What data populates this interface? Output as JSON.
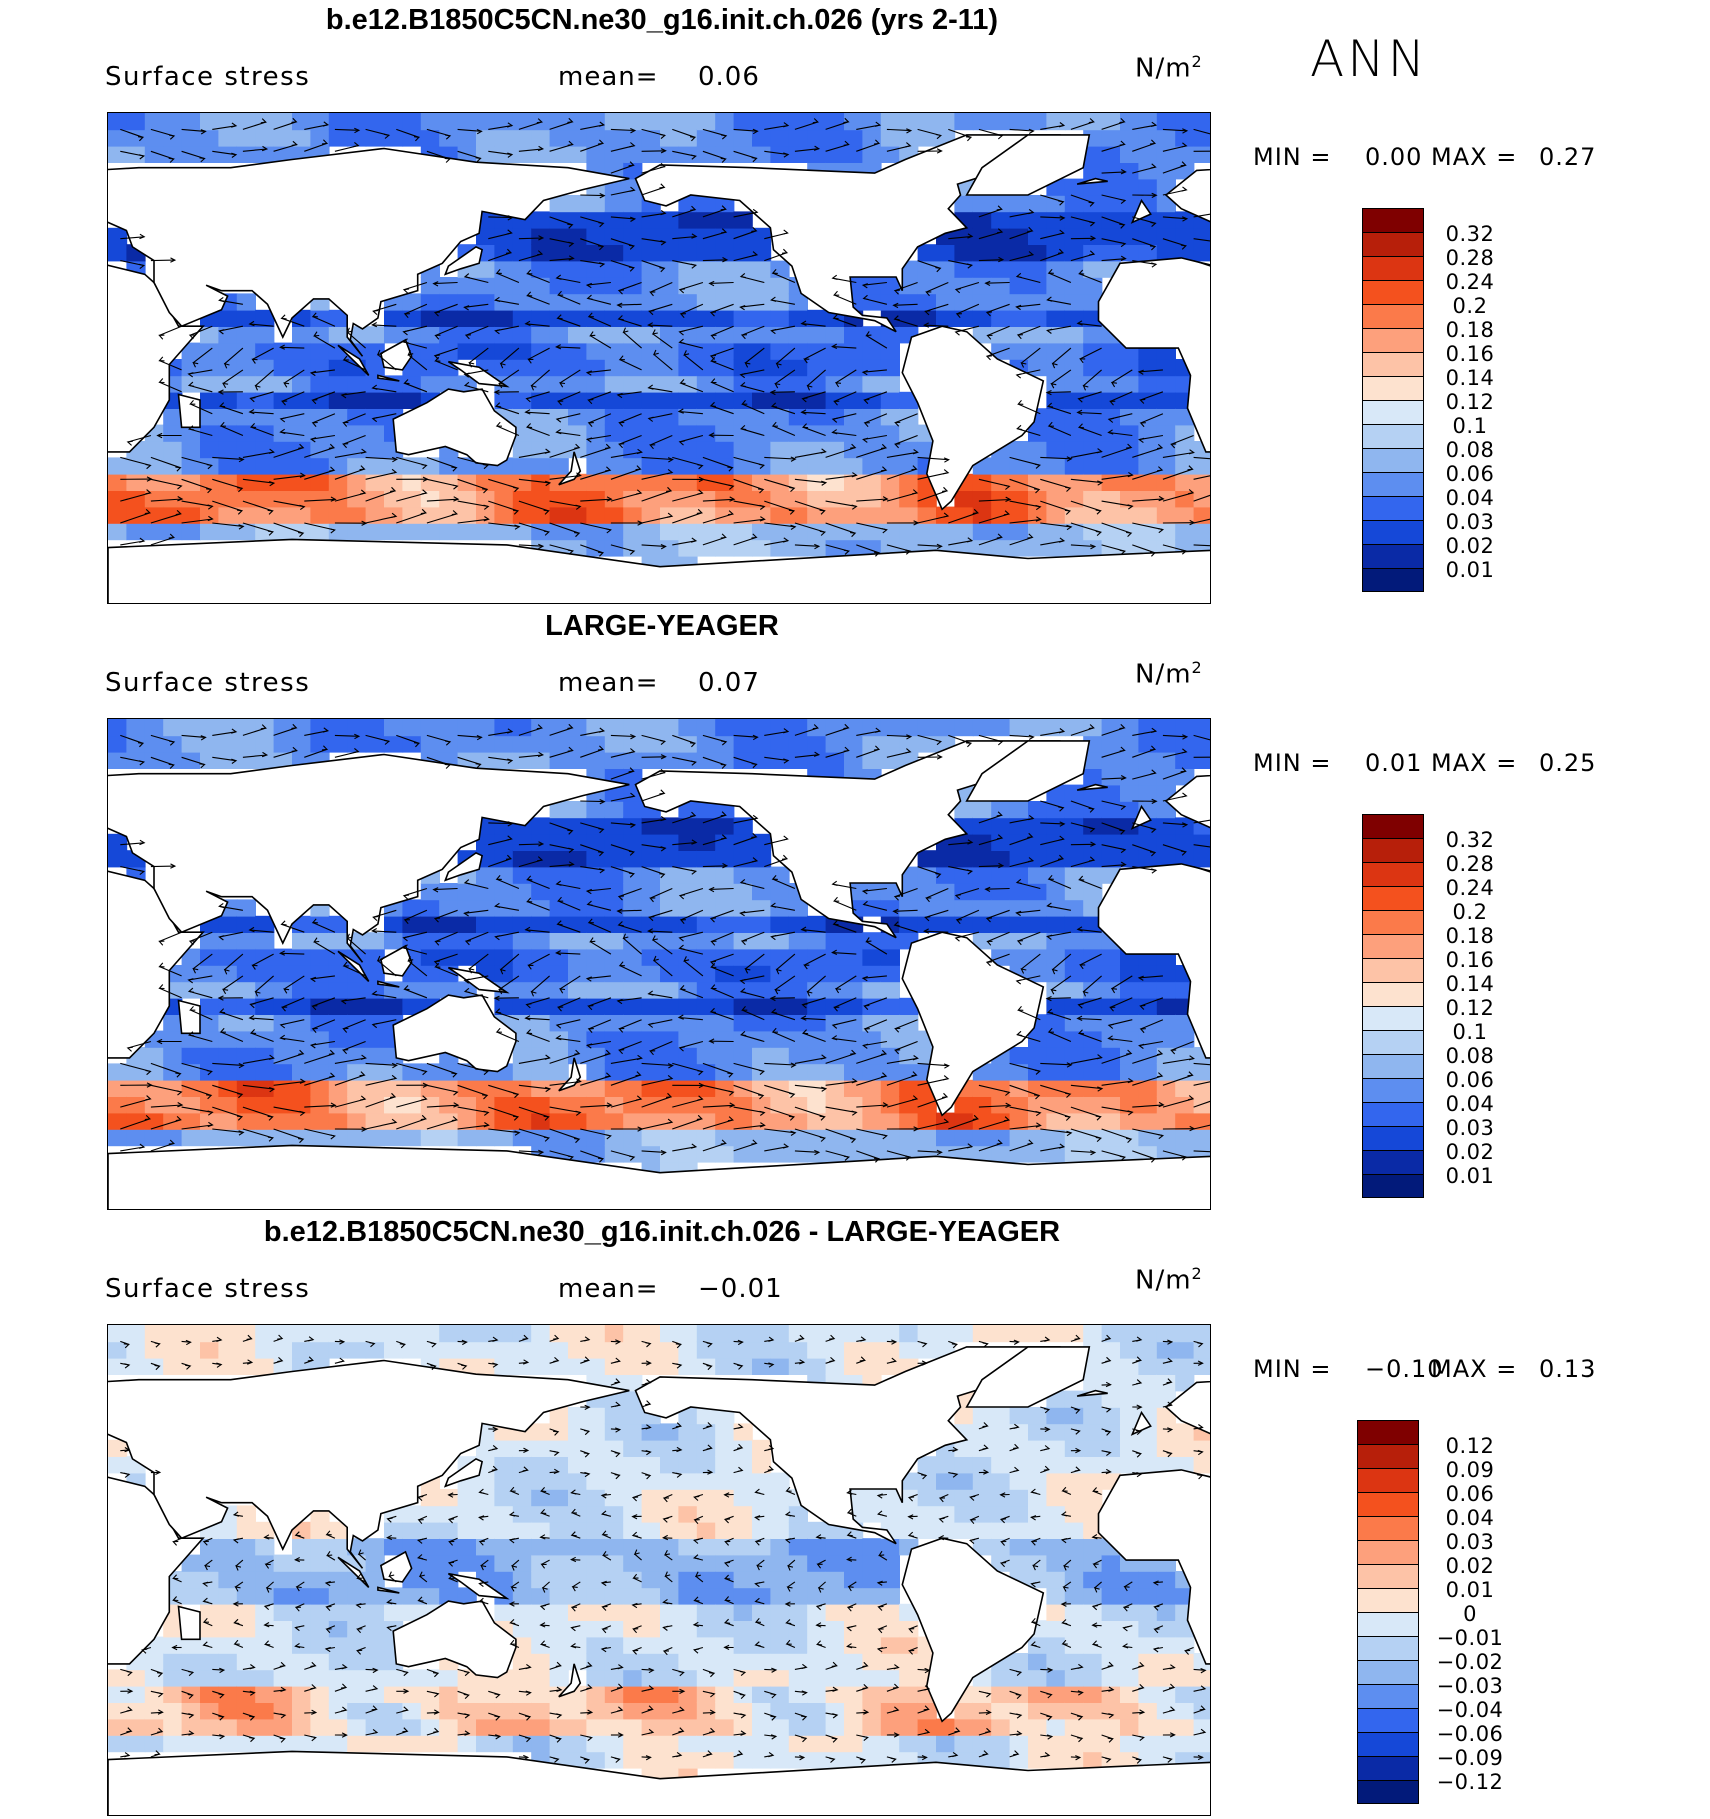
{
  "season": "ANN",
  "panels": [
    {
      "title": "b.e12.B1850C5CN.ne30_g16.init.ch.026 (yrs 2-11)",
      "variable": "Surface stress",
      "mean_label": "mean=",
      "mean_value": "0.06",
      "units": "N/m",
      "units_exp": "2",
      "min_label": "MIN =",
      "min_value": "0.00",
      "max_label": "MAX =",
      "max_value": "0.27",
      "colorbar": [
        "0.32",
        "0.28",
        "0.24",
        "0.2",
        "0.18",
        "0.16",
        "0.14",
        "0.12",
        "0.1",
        "0.08",
        "0.06",
        "0.04",
        "0.03",
        "0.02",
        "0.01"
      ],
      "colors": [
        "#7f0000",
        "#b71f0a",
        "#dc3512",
        "#f4511e",
        "#fb7a4a",
        "#fda07c",
        "#fdc3a7",
        "#fde2cf",
        "#d8e8f8",
        "#b5d1f3",
        "#8fb6ef",
        "#5d8ef0",
        "#3366ee",
        "#1548d8",
        "#0a2aa6",
        "#021a7a"
      ]
    },
    {
      "title": "LARGE-YEAGER",
      "variable": "Surface stress",
      "mean_label": "mean=",
      "mean_value": "0.07",
      "units": "N/m",
      "units_exp": "2",
      "min_label": "MIN =",
      "min_value": "0.01",
      "max_label": "MAX =",
      "max_value": "0.25",
      "colorbar": [
        "0.32",
        "0.28",
        "0.24",
        "0.2",
        "0.18",
        "0.16",
        "0.14",
        "0.12",
        "0.1",
        "0.08",
        "0.06",
        "0.04",
        "0.03",
        "0.02",
        "0.01"
      ],
      "colors": [
        "#7f0000",
        "#b71f0a",
        "#dc3512",
        "#f4511e",
        "#fb7a4a",
        "#fda07c",
        "#fdc3a7",
        "#fde2cf",
        "#d8e8f8",
        "#b5d1f3",
        "#8fb6ef",
        "#5d8ef0",
        "#3366ee",
        "#1548d8",
        "#0a2aa6",
        "#021a7a"
      ]
    },
    {
      "title": "b.e12.B1850C5CN.ne30_g16.init.ch.026 - LARGE-YEAGER",
      "variable": "Surface stress",
      "mean_label": "mean=",
      "mean_value": "−0.01",
      "units": "N/m",
      "units_exp": "2",
      "min_label": "MIN =",
      "min_value": "−0.10",
      "max_label": "MAX =",
      "max_value": "0.13",
      "colorbar": [
        "0.12",
        "0.09",
        "0.06",
        "0.04",
        "0.03",
        "0.02",
        "0.01",
        "0",
        "−0.01",
        "−0.02",
        "−0.03",
        "−0.04",
        "−0.06",
        "−0.09",
        "−0.12"
      ],
      "colors": [
        "#7f0000",
        "#b71f0a",
        "#dc3512",
        "#f4511e",
        "#fb7a4a",
        "#fda07c",
        "#fdc3a7",
        "#fde2cf",
        "#d8e8f8",
        "#b5d1f3",
        "#8fb6ef",
        "#5d8ef0",
        "#3366ee",
        "#1548d8",
        "#0a2aa6",
        "#021a7a"
      ]
    }
  ]
}
